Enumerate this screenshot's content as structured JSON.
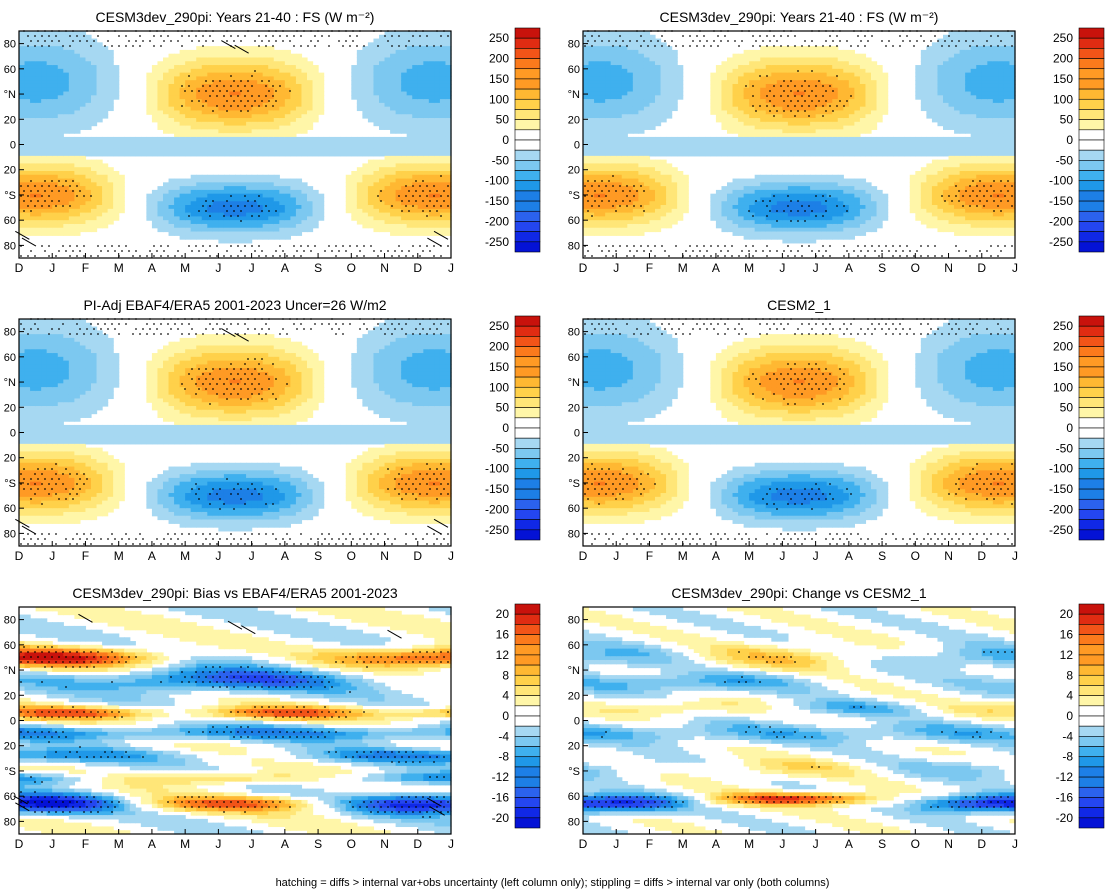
{
  "figure": {
    "footer": "hatching = diffs > internal var+obs uncertainty (left column only); stippling = diffs > internal var only (both columns)"
  },
  "chart_data": [
    {
      "type": "heatmap",
      "title": "CESM3dev_290pi: Years 21-40 : FS (W m⁻²)",
      "x_ticks": [
        "D",
        "J",
        "F",
        "M",
        "A",
        "M",
        "J",
        "J",
        "A",
        "S",
        "O",
        "N",
        "D",
        "J"
      ],
      "y_ticks": [
        "80",
        "60",
        "°N",
        "20",
        "0",
        "20",
        "°S",
        "60",
        "80"
      ],
      "ylim": [
        -90,
        90
      ],
      "colorbar": {
        "levels": [
          "250",
          "200",
          "150",
          "100",
          "50",
          "0",
          "-50",
          "-100",
          "-150",
          "-200",
          "-250"
        ],
        "range": [
          -275,
          275
        ]
      },
      "pattern": "seasonal",
      "hatching": true,
      "stippling": true,
      "extremes": [
        "Seasonal maximum ~ +150 in each hemisphere's summer (30-50°)",
        "Winter minimum ~ -150 at high latitudes"
      ]
    },
    {
      "type": "heatmap",
      "title": "CESM3dev_290pi: Years 21-40 : FS (W m⁻²)",
      "x_ticks": [
        "D",
        "J",
        "F",
        "M",
        "A",
        "M",
        "J",
        "J",
        "A",
        "S",
        "O",
        "N",
        "D",
        "J"
      ],
      "y_ticks": [
        "80",
        "60",
        "°N",
        "20",
        "0",
        "20",
        "°S",
        "60",
        "80"
      ],
      "ylim": [
        -90,
        90
      ],
      "colorbar": {
        "levels": [
          "250",
          "200",
          "150",
          "100",
          "50",
          "0",
          "-50",
          "-100",
          "-150",
          "-200",
          "-250"
        ],
        "range": [
          -275,
          275
        ]
      },
      "pattern": "seasonal",
      "hatching": false,
      "stippling": true
    },
    {
      "type": "heatmap",
      "title": "PI-Adj EBAF4/ERA5 2001-2023 Uncer=26 W/m2",
      "x_ticks": [
        "D",
        "J",
        "F",
        "M",
        "A",
        "M",
        "J",
        "J",
        "A",
        "S",
        "O",
        "N",
        "D",
        "J"
      ],
      "y_ticks": [
        "80",
        "60",
        "°N",
        "20",
        "0",
        "20",
        "°S",
        "60",
        "80"
      ],
      "ylim": [
        -90,
        90
      ],
      "colorbar": {
        "levels": [
          "250",
          "200",
          "150",
          "100",
          "50",
          "0",
          "-50",
          "-100",
          "-150",
          "-200",
          "-250"
        ],
        "range": [
          -275,
          275
        ]
      },
      "pattern": "seasonal",
      "hatching": true,
      "stippling": true
    },
    {
      "type": "heatmap",
      "title": "CESM2_1",
      "x_ticks": [
        "D",
        "J",
        "F",
        "M",
        "A",
        "M",
        "J",
        "J",
        "A",
        "S",
        "O",
        "N",
        "D",
        "J"
      ],
      "y_ticks": [
        "80",
        "60",
        "°N",
        "20",
        "0",
        "20",
        "°S",
        "60",
        "80"
      ],
      "ylim": [
        -90,
        90
      ],
      "colorbar": {
        "levels": [
          "250",
          "200",
          "150",
          "100",
          "50",
          "0",
          "-50",
          "-100",
          "-150",
          "-200",
          "-250"
        ],
        "range": [
          -275,
          275
        ]
      },
      "pattern": "seasonal",
      "hatching": false,
      "stippling": true
    },
    {
      "type": "heatmap",
      "title": "CESM3dev_290pi: Bias vs EBAF4/ERA5 2001-2023",
      "x_ticks": [
        "D",
        "J",
        "F",
        "M",
        "A",
        "M",
        "J",
        "J",
        "A",
        "S",
        "O",
        "N",
        "D",
        "J"
      ],
      "y_ticks": [
        "80",
        "60",
        "°N",
        "20",
        "0",
        "20",
        "°S",
        "60",
        "80"
      ],
      "ylim": [
        -90,
        90
      ],
      "colorbar": {
        "levels": [
          "20",
          "16",
          "12",
          "8",
          "4",
          "0",
          "-4",
          "-8",
          "-12",
          "-16",
          "-20"
        ],
        "range": [
          -22,
          22
        ]
      },
      "pattern": "bias",
      "hatching": true,
      "stippling": true
    },
    {
      "type": "heatmap",
      "title": "CESM3dev_290pi: Change vs CESM2_1",
      "x_ticks": [
        "D",
        "J",
        "F",
        "M",
        "A",
        "M",
        "J",
        "J",
        "A",
        "S",
        "O",
        "N",
        "D",
        "J"
      ],
      "y_ticks": [
        "80",
        "60",
        "°N",
        "20",
        "0",
        "20",
        "°S",
        "60",
        "80"
      ],
      "ylim": [
        -90,
        90
      ],
      "colorbar": {
        "levels": [
          "20",
          "16",
          "12",
          "8",
          "4",
          "0",
          "-4",
          "-8",
          "-12",
          "-16",
          "-20"
        ],
        "range": [
          -22,
          22
        ]
      },
      "pattern": "change",
      "hatching": false,
      "stippling": true
    }
  ]
}
